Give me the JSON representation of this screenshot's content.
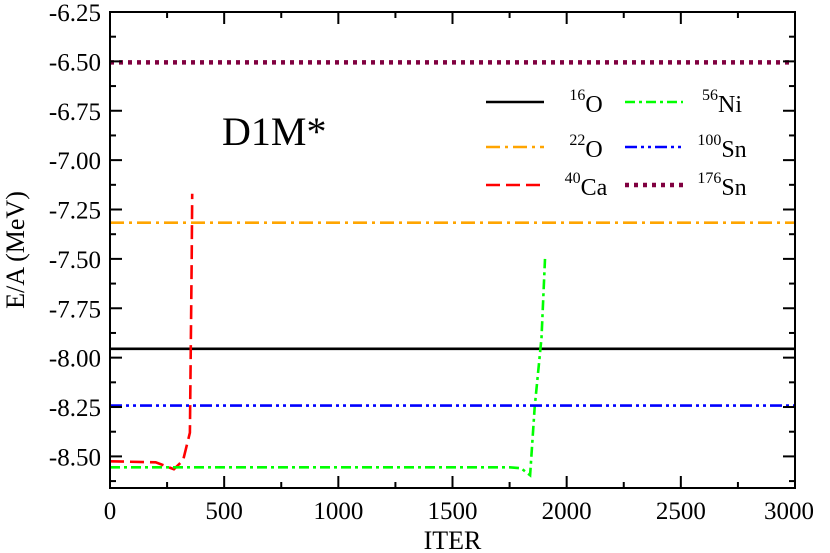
{
  "chart_data": {
    "type": "line",
    "xlabel": "ITER",
    "ylabel": "E/A (MeV)",
    "annotation": "D1M*",
    "xlim": [
      0,
      3000
    ],
    "ylim": [
      -8.66,
      -6.25
    ],
    "xticks": [
      0,
      500,
      1000,
      1500,
      2000,
      2500,
      3000
    ],
    "xtick_labels": [
      "0",
      "500",
      "1000",
      "1500",
      "2000",
      "2500",
      "3000"
    ],
    "yticks": [
      -6.25,
      -6.5,
      -6.75,
      -7.0,
      -7.25,
      -7.5,
      -7.75,
      -8.0,
      -8.25,
      -8.5
    ],
    "ytick_labels": [
      "-6.25",
      "-6.50",
      "-6.75",
      "-7.00",
      "-7.25",
      "-7.50",
      "-7.75",
      "-8.00",
      "-8.25",
      "-8.50"
    ],
    "grid": false,
    "legend_position": "top-right",
    "series": [
      {
        "key": "o16",
        "mass": "16",
        "element": "O",
        "color": "#000000",
        "dash": "solid",
        "x": [
          0,
          3000
        ],
        "y": [
          -7.955,
          -7.955
        ]
      },
      {
        "key": "o22",
        "mass": "22",
        "element": "O",
        "color": "#ffa500",
        "dash": "dashdot",
        "x": [
          0,
          3000
        ],
        "y": [
          -7.317,
          -7.317
        ]
      },
      {
        "key": "ca40",
        "mass": "40",
        "element": "Ca",
        "color": "#ff0000",
        "dash": "dashed",
        "x": [
          0,
          200,
          280,
          320,
          350,
          358,
          360
        ],
        "y": [
          -8.525,
          -8.53,
          -8.565,
          -8.52,
          -8.38,
          -7.5,
          -7.17
        ]
      },
      {
        "key": "ni56",
        "mass": "56",
        "element": "Ni",
        "color": "#00ff00",
        "dash": "dashdotdash",
        "x": [
          0,
          1000,
          1750,
          1800,
          1840,
          1860,
          1890,
          1905
        ],
        "y": [
          -8.555,
          -8.555,
          -8.555,
          -8.56,
          -8.595,
          -8.25,
          -7.9,
          -7.5
        ]
      },
      {
        "key": "sn100",
        "mass": "100",
        "element": "Sn",
        "color": "#0000ff",
        "dash": "dashdotdot",
        "x": [
          0,
          3000
        ],
        "y": [
          -8.243,
          -8.243
        ]
      },
      {
        "key": "sn176",
        "mass": "176",
        "element": "Sn",
        "color": "#800040",
        "dash": "dotted",
        "x": [
          0,
          3000
        ],
        "y": [
          -6.505,
          -6.505
        ]
      }
    ]
  }
}
